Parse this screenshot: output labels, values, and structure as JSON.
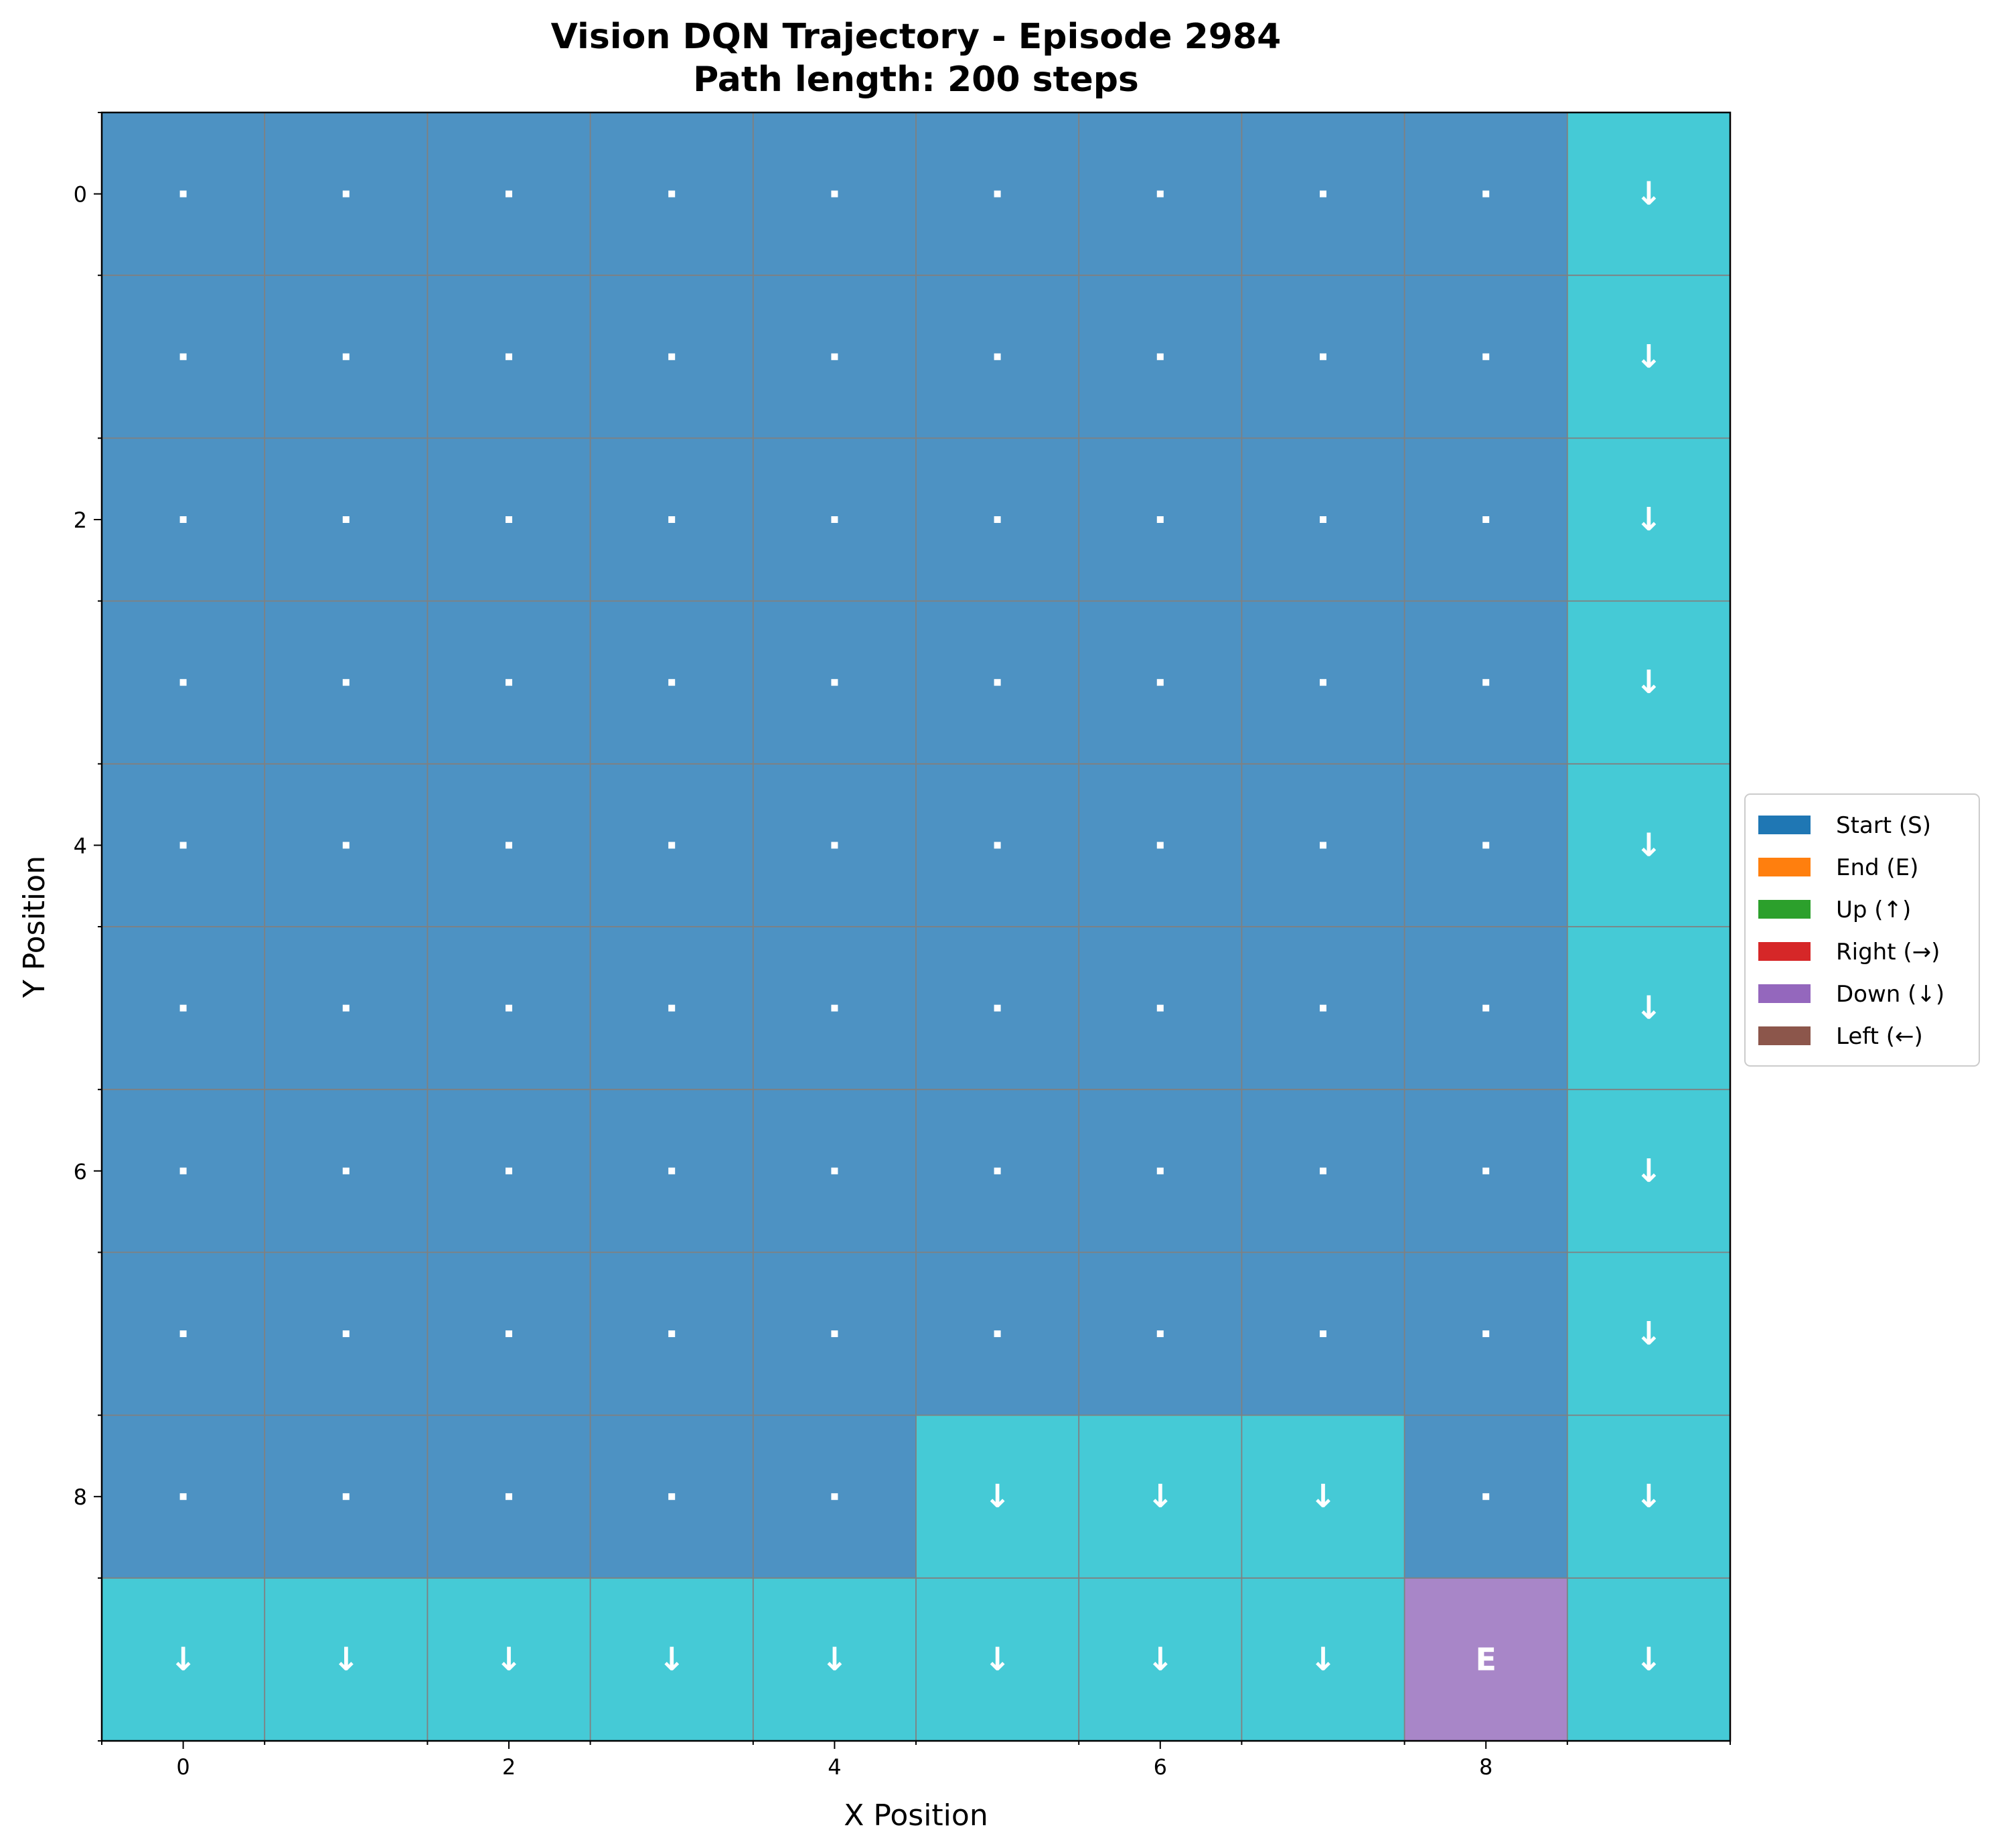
{
  "chart_data": {
    "type": "heatmap",
    "title_line1": "Vision DQN Trajectory - Episode 2984",
    "title_line2": "Path length: 200 steps",
    "xlabel": "X Position",
    "ylabel": "Y Position",
    "x_ticks": [
      0,
      2,
      4,
      6,
      8
    ],
    "y_ticks": [
      0,
      2,
      4,
      6,
      8
    ],
    "xlim": [
      -0.5,
      9.5
    ],
    "ylim": [
      9.5,
      -0.5
    ],
    "grid_size": 10,
    "legend_position": "center-right, outside plot",
    "legend": [
      {
        "label": "Start (S)",
        "color": "#1f77b4"
      },
      {
        "label": "End (E)",
        "color": "#ff7f0e"
      },
      {
        "label": "Up (↑)",
        "color": "#2ca02c"
      },
      {
        "label": "Right (→)",
        "color": "#d62728"
      },
      {
        "label": "Down (↓)",
        "color": "#9467bd"
      },
      {
        "label": "Left (←)",
        "color": "#8c564b"
      }
    ],
    "cell_colors": {
      "unvisited": "#4d92c3",
      "visited": "#45cad6",
      "end": "#a886c8"
    },
    "cells": [
      [
        ".",
        ".",
        ".",
        ".",
        ".",
        ".",
        ".",
        ".",
        ".",
        "↓"
      ],
      [
        ".",
        ".",
        ".",
        ".",
        ".",
        ".",
        ".",
        ".",
        ".",
        "↓"
      ],
      [
        ".",
        ".",
        ".",
        ".",
        ".",
        ".",
        ".",
        ".",
        ".",
        "↓"
      ],
      [
        ".",
        ".",
        ".",
        ".",
        ".",
        ".",
        ".",
        ".",
        ".",
        "↓"
      ],
      [
        ".",
        ".",
        ".",
        ".",
        ".",
        ".",
        ".",
        ".",
        ".",
        "↓"
      ],
      [
        ".",
        ".",
        ".",
        ".",
        ".",
        ".",
        ".",
        ".",
        ".",
        "↓"
      ],
      [
        ".",
        ".",
        ".",
        ".",
        ".",
        ".",
        ".",
        ".",
        ".",
        "↓"
      ],
      [
        ".",
        ".",
        ".",
        ".",
        ".",
        ".",
        ".",
        ".",
        ".",
        "↓"
      ],
      [
        ".",
        ".",
        ".",
        ".",
        ".",
        "↓",
        "↓",
        "↓",
        ".",
        "↓"
      ],
      [
        "↓",
        "↓",
        "↓",
        "↓",
        "↓",
        "↓",
        "↓",
        "↓",
        "E",
        "↓"
      ]
    ]
  }
}
